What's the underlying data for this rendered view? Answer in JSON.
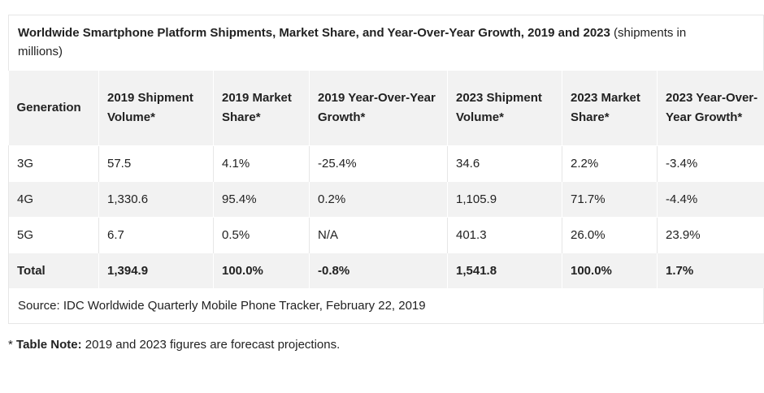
{
  "caption": {
    "title": "Worldwide Smartphone Platform Shipments, Market Share, and Year-Over-Year Growth, 2019 and 2023",
    "subtitle_line1": " (shipments in",
    "subtitle_line2": "millions)"
  },
  "table": {
    "headers": {
      "h1": "Generation",
      "h2": "2019 Shipment Volume*",
      "h3": "2019 Market Share*",
      "h4": "2019 Year-Over-Year Growth*",
      "h5": "2023 Shipment Volume*",
      "h6": "2023 Market Share*",
      "h7": "2023 Year-Over-Year Growth*"
    },
    "rows": [
      [
        "3G",
        "57.5",
        "4.1%",
        "-25.4%",
        "34.6",
        "2.2%",
        "-3.4%"
      ],
      [
        "4G",
        "1,330.6",
        "95.4%",
        "0.2%",
        "1,105.9",
        "71.7%",
        "-4.4%"
      ],
      [
        "5G",
        "6.7",
        "0.5%",
        "N/A",
        "401.3",
        "26.0%",
        "23.9%"
      ],
      [
        "Total",
        "1,394.9",
        "100.0%",
        "-0.8%",
        "1,541.8",
        "100.0%",
        "1.7%"
      ]
    ]
  },
  "source": "Source: IDC Worldwide Quarterly Mobile Phone Tracker, February 22, 2019",
  "note": {
    "prefix": "* ",
    "label": "Table Note:",
    "text": " 2019 and 2023 figures are forecast projections."
  }
}
